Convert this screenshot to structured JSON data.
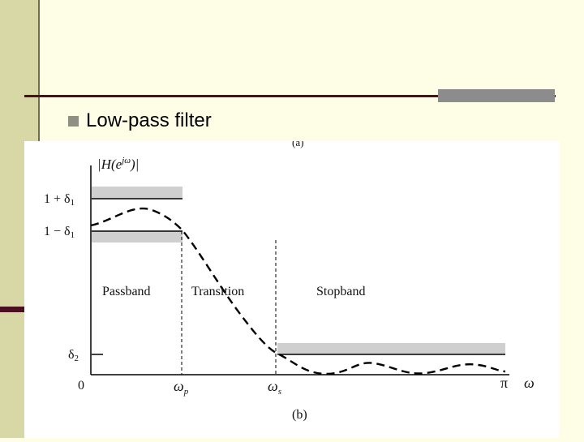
{
  "slide": {
    "bullet_text": "Low-pass filter"
  },
  "figure": {
    "top_label": "(a)",
    "caption": "(b)",
    "y_axis_label": "|H(e^{jω})|",
    "y_ticks": {
      "upper_pass": "1 + δ1",
      "lower_pass": "1 − δ1",
      "stop": "δ2",
      "origin": "0"
    },
    "x_ticks": {
      "wp": "ωp",
      "ws": "ωs",
      "pi": "π",
      "omega": "ω"
    },
    "regions": {
      "passband": "Passband",
      "transition": "Transition",
      "stopband": "Stopband"
    }
  }
}
